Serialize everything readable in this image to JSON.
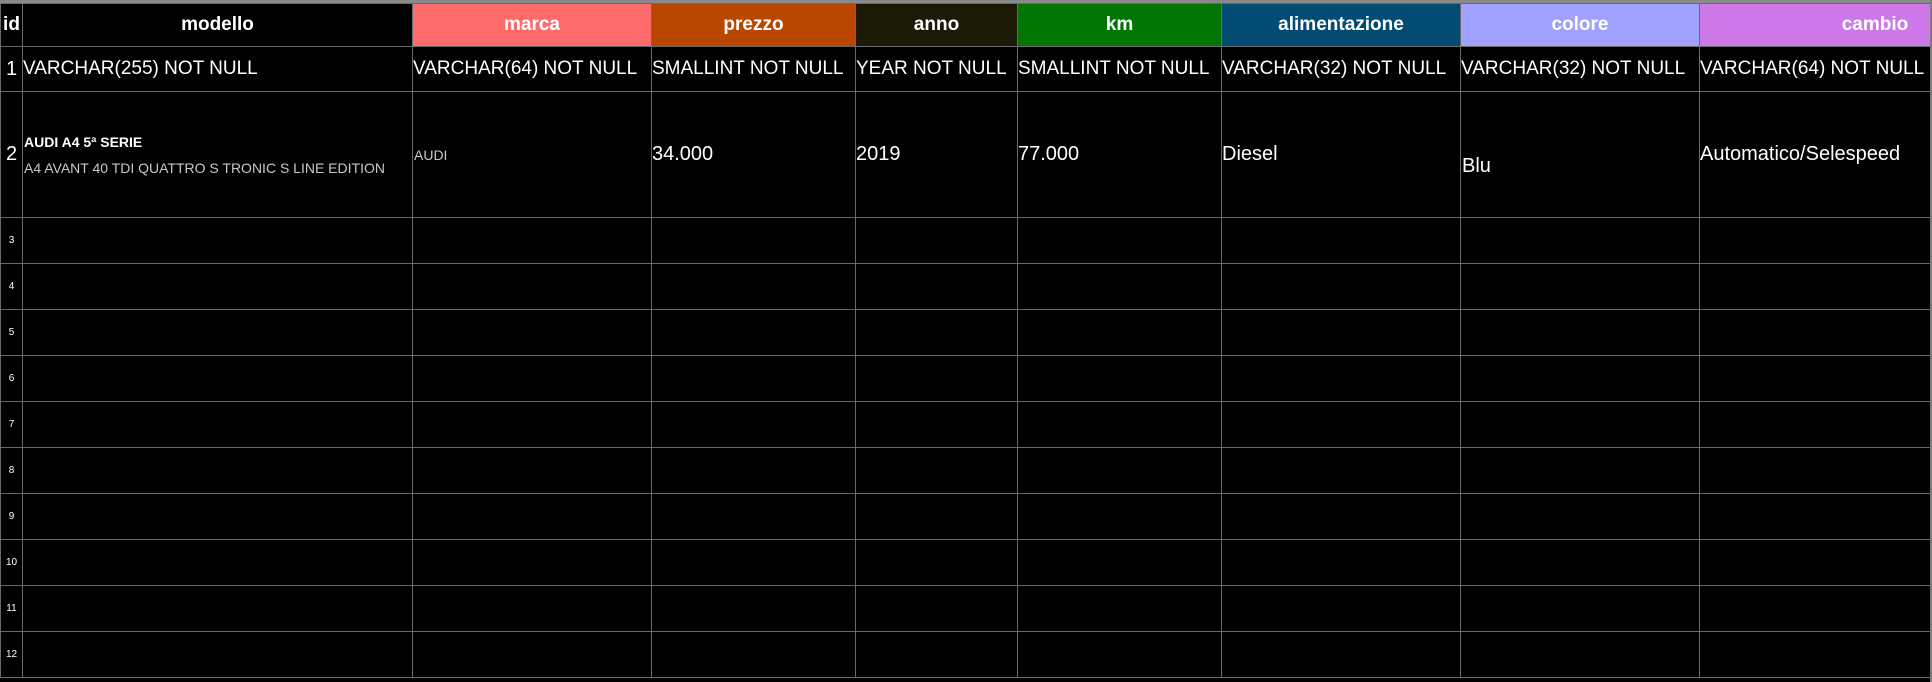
{
  "columns": [
    {
      "label": "id",
      "color": "#000000"
    },
    {
      "label": "modello",
      "color": "#000000"
    },
    {
      "label": "marca",
      "color": "#ff6b6b"
    },
    {
      "label": "prezzo",
      "color": "#b94700"
    },
    {
      "label": "anno",
      "color": "#1c1a07"
    },
    {
      "label": "km",
      "color": "#037503"
    },
    {
      "label": "alimentazione",
      "color": "#024b72"
    },
    {
      "label": "colore",
      "color": "#a0a0ff"
    },
    {
      "label": "cambio",
      "color": "#cd78e8"
    }
  ],
  "type_row": {
    "id": "1",
    "modello": "VARCHAR(255) NOT NULL",
    "marca": "VARCHAR(64) NOT NULL",
    "prezzo": "SMALLINT NOT NULL",
    "anno": "YEAR NOT NULL",
    "km": "SMALLINT NOT NULL",
    "alimentazione": "VARCHAR(32) NOT NULL",
    "colore": "VARCHAR(32) NOT NULL",
    "cambio": "VARCHAR(64) NOT NULL"
  },
  "data_row": {
    "id": "2",
    "modello_title": "AUDI A4 5ª SERIE",
    "modello_sub": "A4 AVANT 40 TDI QUATTRO S TRONIC S LINE EDITION",
    "marca": "AUDI",
    "prezzo": "34.000",
    "anno": "2019",
    "km": "77.000",
    "alimentazione": "Diesel",
    "colore": "Blu",
    "cambio": "Automatico/Selespeed"
  },
  "empty_row_ids": [
    "3",
    "4",
    "5",
    "6",
    "7",
    "8",
    "9",
    "10",
    "11",
    "12"
  ]
}
